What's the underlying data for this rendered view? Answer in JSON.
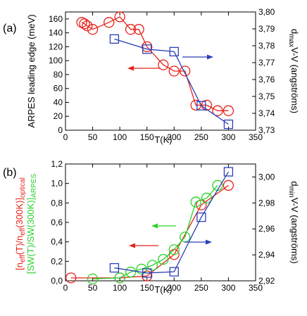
{
  "chart_data": [
    {
      "type": "line",
      "panel_label": "(a)",
      "xlabel": "T(K)",
      "ylabel": "ARPES leading edge (meV)",
      "y2label": "d_maxV-V (angstroms)",
      "y2label_parts": {
        "main": "d",
        "sub": "max",
        "rest": "V-V (angströms)"
      },
      "xlim": [
        0,
        350
      ],
      "xticks": [
        "0",
        "50",
        "100",
        "150",
        "200",
        "250",
        "300",
        "350"
      ],
      "ylim": [
        0,
        170
      ],
      "yticks": [
        "0",
        "20",
        "40",
        "60",
        "80",
        "100",
        "120",
        "140",
        "160"
      ],
      "y2lim": [
        3.73,
        3.8
      ],
      "y2ticks": [
        "3,73",
        "3,74",
        "3,75",
        "3,76",
        "3,77",
        "3,78",
        "3,79",
        "3,80"
      ],
      "series": [
        {
          "axis": "left",
          "color": "#e8231b",
          "marker": "circle",
          "x": [
            30,
            35,
            40,
            50,
            80,
            100,
            120,
            135,
            150,
            180,
            200,
            220,
            240,
            260,
            280,
            300
          ],
          "y": [
            155,
            153,
            150,
            145,
            155,
            163,
            145,
            145,
            120,
            94,
            85,
            85,
            36,
            36,
            28,
            28
          ]
        },
        {
          "axis": "right",
          "color": "#2a3fb5",
          "marker": "square",
          "x": [
            90,
            150,
            200,
            250,
            300
          ],
          "y": [
            3.784,
            3.778,
            3.7765,
            3.7445,
            3.7335
          ]
        }
      ],
      "arrows": [
        {
          "direction": "left",
          "color": "#e8231b"
        },
        {
          "direction": "right",
          "color": "#2a3fb5"
        }
      ]
    },
    {
      "type": "line",
      "panel_label": "(b)",
      "xlabel": "T(K)",
      "ylabel_red": "[n_eff(T)/n_eff(300K)]_optical",
      "ylabel_red_parts": [
        "[n",
        "eff",
        "(T)/n",
        "eff",
        "(300K)]",
        "optical"
      ],
      "ylabel_green": "[SW(T)/SW(300K)]_ARPES",
      "ylabel_green_parts": [
        "[SW(T)/SW(300K)]",
        "ARPES"
      ],
      "y2label": "d_minV-V (angstroms)",
      "y2label_parts": {
        "main": "d",
        "sub": "min",
        "rest": "V-V (angströms)"
      },
      "xlim": [
        0,
        350
      ],
      "xticks": [
        "0",
        "50",
        "100",
        "150",
        "200",
        "250",
        "300",
        "350"
      ],
      "ylim": [
        0,
        1.2
      ],
      "yticks": [
        "0,0",
        "0,2",
        "0,4",
        "0,6",
        "0,8",
        "1,0",
        "1,2"
      ],
      "y2lim": [
        2.92,
        3.01
      ],
      "y2ticks": [
        "2,92",
        "2,94",
        "2,96",
        "2,98",
        "3,00"
      ],
      "series": [
        {
          "axis": "left",
          "color": "#e8231b",
          "marker": "circle",
          "x": [
            10,
            100,
            150,
            200,
            250,
            300
          ],
          "y": [
            0.03,
            0.03,
            0.05,
            0.27,
            0.78,
            0.98
          ]
        },
        {
          "axis": "left",
          "color": "#2bd12b",
          "marker": "circle",
          "x": [
            50,
            100,
            120,
            140,
            160,
            180,
            200,
            220,
            240,
            260,
            280
          ],
          "y": [
            0.02,
            0.03,
            0.09,
            0.12,
            0.16,
            0.22,
            0.32,
            0.45,
            0.81,
            0.85,
            0.98
          ]
        },
        {
          "axis": "right",
          "color": "#2a3fb5",
          "marker": "square",
          "x": [
            90,
            150,
            200,
            250,
            300
          ],
          "y": [
            2.93,
            2.926,
            2.927,
            2.969,
            3.004
          ]
        }
      ],
      "arrows": [
        {
          "direction": "left",
          "color": "#2bd12b"
        },
        {
          "direction": "left",
          "color": "#e8231b"
        },
        {
          "direction": "right",
          "color": "#2a3fb5"
        }
      ]
    }
  ]
}
